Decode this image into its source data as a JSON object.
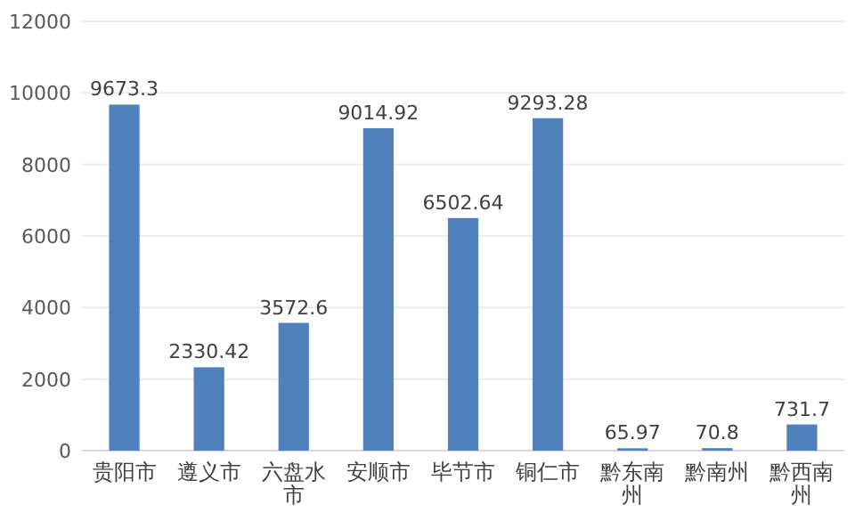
{
  "chart_data": {
    "type": "bar",
    "categories": [
      "贵阳市",
      "遵义市",
      "六盘水市",
      "安顺市",
      "毕节市",
      "铜仁市",
      "黔东南州",
      "黔南州",
      "黔西南州"
    ],
    "values": [
      9673.3,
      2330.42,
      3572.6,
      9014.92,
      6502.64,
      9293.28,
      65.97,
      70.8,
      731.7
    ],
    "color": "#4f81bd",
    "ylim": [
      0,
      12000
    ],
    "yticks": [
      0,
      2000,
      4000,
      6000,
      8000,
      10000,
      12000
    ],
    "grid": "y",
    "data_labels": true
  }
}
